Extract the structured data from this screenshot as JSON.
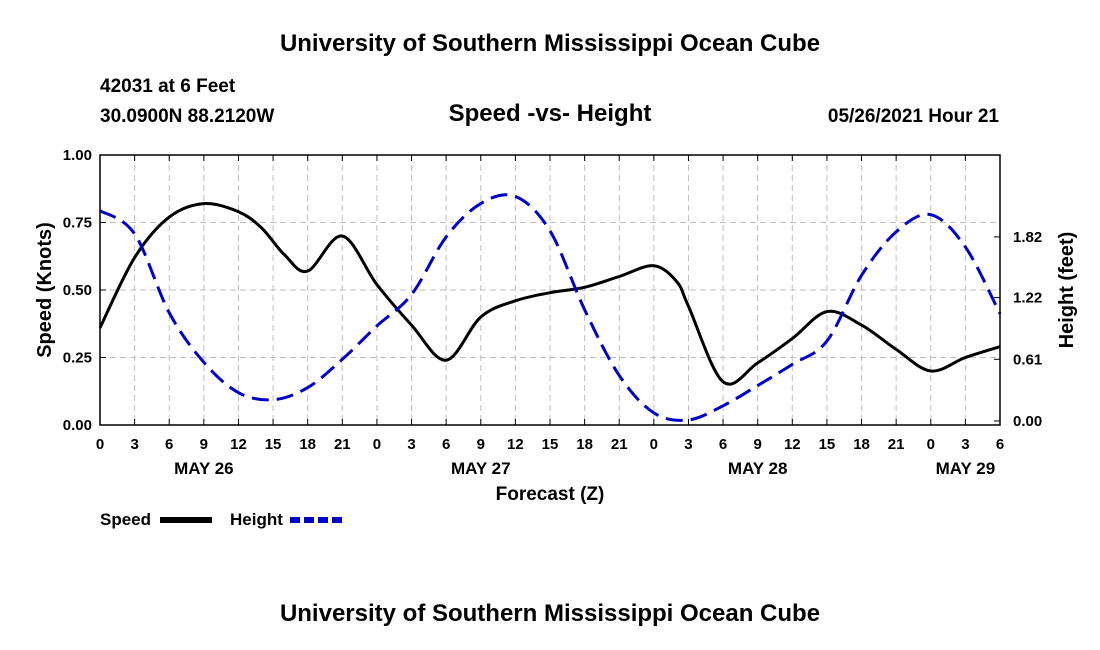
{
  "header": {
    "title": "University of Southern Mississippi Ocean Cube",
    "station": "42031 at 6 Feet",
    "coordinates": "30.0900N  88.2120W",
    "chart_title": "Speed -vs- Height",
    "date": "05/26/2021 Hour 21"
  },
  "footer": {
    "title": "University of Southern Mississippi Ocean Cube"
  },
  "chart_data": {
    "type": "line",
    "title": "Speed -vs- Height",
    "xlabel": "Forecast (Z)",
    "ylabel": "Speed (Knots)",
    "y2label": "Height (feet)",
    "x_hours": [
      0,
      78
    ],
    "x_ticks": [
      0,
      3,
      6,
      9,
      12,
      15,
      18,
      21,
      24,
      27,
      30,
      33,
      36,
      39,
      42,
      45,
      48,
      51,
      54,
      57,
      60,
      63,
      66,
      69,
      72,
      75,
      78
    ],
    "x_tick_labels": [
      "0",
      "3",
      "6",
      "9",
      "12",
      "15",
      "18",
      "21",
      "0",
      "3",
      "6",
      "9",
      "12",
      "15",
      "18",
      "21",
      "0",
      "3",
      "6",
      "9",
      "12",
      "15",
      "18",
      "21",
      "0",
      "3",
      "6"
    ],
    "date_labels": [
      {
        "hour": 9,
        "label": "MAY 26"
      },
      {
        "hour": 33,
        "label": "MAY 27"
      },
      {
        "hour": 57,
        "label": "MAY 28"
      },
      {
        "hour": 75,
        "label": "MAY 29"
      }
    ],
    "ylim": [
      0,
      1.0
    ],
    "y_ticks": [
      0,
      0.25,
      0.5,
      0.75,
      1.0
    ],
    "y_tick_labels": [
      "0.00",
      "0.25",
      "0.50",
      "0.75",
      "1.00"
    ],
    "y2lim": [
      -0.04,
      2.63
    ],
    "y2_ticks": [
      0,
      0.61,
      1.22,
      1.82
    ],
    "y2_tick_labels": [
      "0.00",
      "0.61",
      "1.22",
      "1.82"
    ],
    "grid": true,
    "legend_position": "bottom-left",
    "series": [
      {
        "name": "Speed",
        "axis": "left",
        "color": "#000000",
        "style": "solid",
        "x": [
          0,
          3,
          6,
          9,
          12,
          14,
          16,
          18,
          21,
          24,
          27,
          30,
          33,
          36,
          39,
          42,
          45,
          48,
          50,
          51,
          54,
          57,
          60,
          63,
          66,
          69,
          72,
          75,
          78
        ],
        "y": [
          0.36,
          0.62,
          0.77,
          0.82,
          0.79,
          0.73,
          0.63,
          0.57,
          0.7,
          0.52,
          0.37,
          0.24,
          0.4,
          0.46,
          0.49,
          0.51,
          0.55,
          0.59,
          0.53,
          0.44,
          0.16,
          0.23,
          0.32,
          0.42,
          0.37,
          0.28,
          0.2,
          0.25,
          0.29
        ]
      },
      {
        "name": "Height",
        "axis": "right",
        "color": "#0000cc",
        "style": "dashed",
        "x": [
          0,
          3,
          6,
          9,
          12,
          15,
          18,
          21,
          24,
          27,
          30,
          33,
          36,
          39,
          42,
          45,
          48,
          51,
          54,
          57,
          60,
          63,
          66,
          69,
          72,
          75,
          78
        ],
        "y": [
          2.08,
          1.85,
          1.07,
          0.58,
          0.28,
          0.21,
          0.33,
          0.61,
          0.94,
          1.25,
          1.82,
          2.15,
          2.22,
          1.88,
          1.1,
          0.45,
          0.08,
          0.01,
          0.15,
          0.35,
          0.56,
          0.79,
          1.44,
          1.87,
          2.04,
          1.72,
          1.06
        ]
      }
    ]
  }
}
